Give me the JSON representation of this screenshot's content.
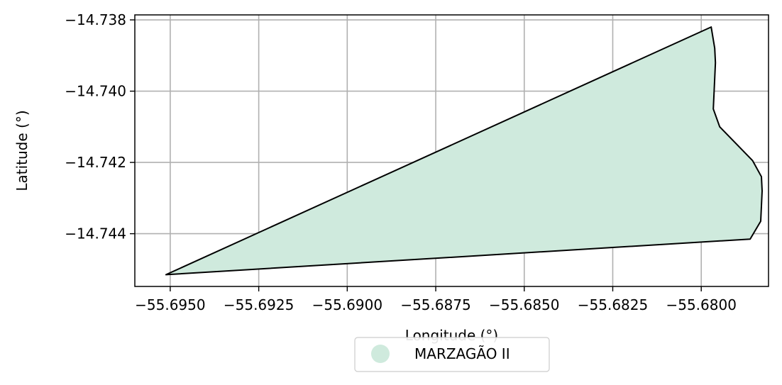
{
  "chart_data": {
    "type": "area",
    "title": "",
    "xlabel": "Longitude (°)",
    "ylabel": "Latitude (°)",
    "xlim": [
      -55.696,
      -55.6781
    ],
    "ylim": [
      -14.74548,
      -14.73786
    ],
    "grid": true,
    "x_ticks": [
      -55.695,
      -55.6925,
      -55.69,
      -55.6875,
      -55.685,
      -55.6825,
      -55.68
    ],
    "x_tick_labels": [
      "−55.6950",
      "−55.6925",
      "−55.6900",
      "−55.6875",
      "−55.6850",
      "−55.6825",
      "−55.6800"
    ],
    "y_ticks": [
      -14.738,
      -14.74,
      -14.742,
      -14.744
    ],
    "y_tick_labels": [
      "−14.738",
      "−14.740",
      "−14.742",
      "−14.744"
    ],
    "legend_position": "bottom-center",
    "series": [
      {
        "name": "MARZAGÃO II",
        "fill_color": "#cfeadd",
        "edge_color": "#000000",
        "polygon": [
          [
            -55.69512,
            -14.74515
          ],
          [
            -55.67972,
            -14.7382
          ],
          [
            -55.67962,
            -14.7388
          ],
          [
            -55.6796,
            -14.7392
          ],
          [
            -55.67966,
            -14.7405
          ],
          [
            -55.67948,
            -14.741
          ],
          [
            -55.67855,
            -14.74195
          ],
          [
            -55.6783,
            -14.7424
          ],
          [
            -55.67828,
            -14.7428
          ],
          [
            -55.67832,
            -14.74365
          ],
          [
            -55.67862,
            -14.74415
          ],
          [
            -55.69512,
            -14.74515
          ]
        ]
      }
    ]
  }
}
